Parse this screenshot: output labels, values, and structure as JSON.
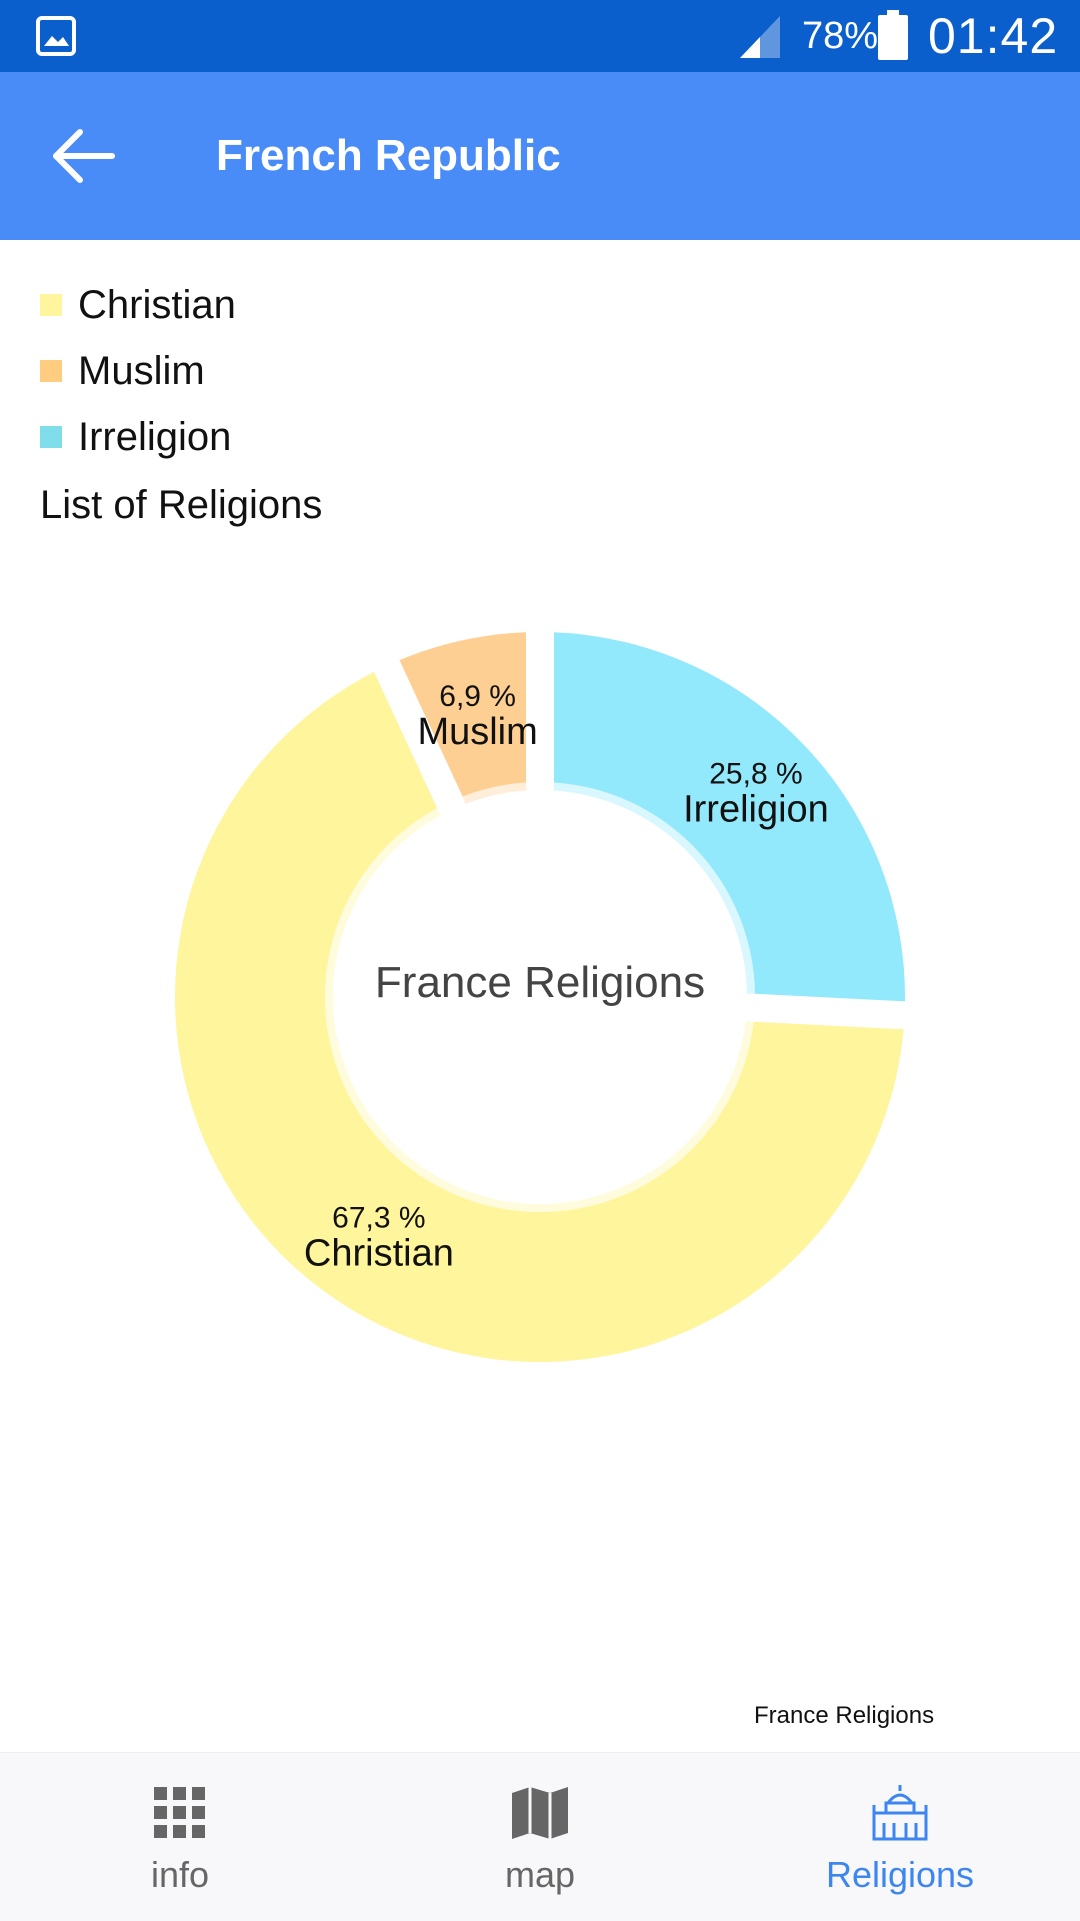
{
  "status_bar": {
    "battery_percent": "78%",
    "time": "01:42",
    "icons": [
      "gallery-notification-icon",
      "cell-signal-icon",
      "battery-icon"
    ]
  },
  "app_bar": {
    "title": "French Republic",
    "back_icon": "back-arrow-icon"
  },
  "legend": {
    "items": [
      {
        "label": "Christian",
        "color": "#fff59d"
      },
      {
        "label": "Muslim",
        "color": "#ffcc80"
      },
      {
        "label": "Irreligion",
        "color": "#80deea"
      }
    ],
    "list_title": "List of Religions"
  },
  "chart_data": {
    "type": "pie",
    "style": "donut",
    "center_text": "France Religions",
    "categories": [
      "Irreligion",
      "Christian",
      "Muslim"
    ],
    "values": [
      25.8,
      67.3,
      6.9
    ],
    "value_labels": [
      "25,8 %",
      "67,3 %",
      "6,9 %"
    ],
    "colors": [
      "#92e9fb",
      "#fff59d",
      "#fecf92"
    ],
    "caption": "France Religions"
  },
  "bottom_nav": {
    "items": [
      {
        "label": "info",
        "icon": "grid-icon",
        "active": false
      },
      {
        "label": "map",
        "icon": "map-icon",
        "active": false
      },
      {
        "label": "Religions",
        "icon": "church-icon",
        "active": true
      }
    ],
    "active_color": "#3d86f0",
    "inactive_color": "#666666"
  }
}
